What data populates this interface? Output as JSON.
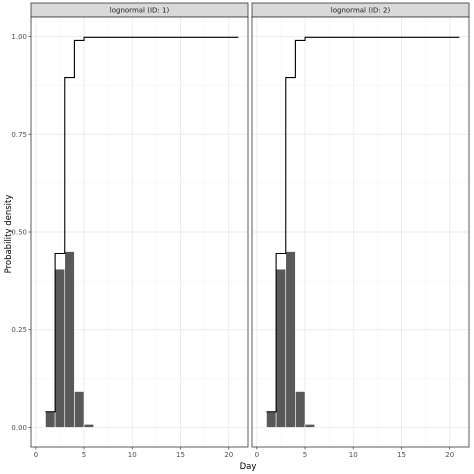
{
  "chart_data": {
    "type": "bar",
    "xlabel": "Day",
    "ylabel": "Probability density",
    "xlim": [
      -0.5,
      22
    ],
    "ylim": [
      -0.05,
      1.05
    ],
    "x_ticks": [
      0,
      5,
      10,
      15,
      20
    ],
    "y_ticks": [
      0,
      0.25,
      0.5,
      0.75,
      1
    ],
    "y_tick_labels": [
      "0.00",
      "0.25",
      "0.50",
      "0.75",
      "1.00"
    ],
    "grid": true,
    "colors": {
      "bar": "#595959",
      "line": "#000000",
      "strip_bg": "#d9d9d9",
      "grid_major": "#ebebeb",
      "grid_minor": "#f5f5f5"
    },
    "panels": [
      {
        "label": "lognormal (ID: 1)",
        "bars": [
          {
            "x": 1,
            "y": 0.04
          },
          {
            "x": 2,
            "y": 0.405
          },
          {
            "x": 3,
            "y": 0.45
          },
          {
            "x": 4,
            "y": 0.092
          },
          {
            "x": 5,
            "y": 0.008
          }
        ],
        "cdf": [
          {
            "x": 1,
            "y": 0.04
          },
          {
            "x": 2,
            "y": 0.445
          },
          {
            "x": 3,
            "y": 0.895
          },
          {
            "x": 4,
            "y": 0.99
          },
          {
            "x": 5,
            "y": 0.998
          },
          {
            "x": 21,
            "y": 0.998
          }
        ]
      },
      {
        "label": "lognormal (ID: 2)",
        "bars": [
          {
            "x": 1,
            "y": 0.04
          },
          {
            "x": 2,
            "y": 0.405
          },
          {
            "x": 3,
            "y": 0.45
          },
          {
            "x": 4,
            "y": 0.092
          },
          {
            "x": 5,
            "y": 0.008
          }
        ],
        "cdf": [
          {
            "x": 1,
            "y": 0.04
          },
          {
            "x": 2,
            "y": 0.445
          },
          {
            "x": 3,
            "y": 0.895
          },
          {
            "x": 4,
            "y": 0.99
          },
          {
            "x": 5,
            "y": 0.998
          },
          {
            "x": 21,
            "y": 0.998
          }
        ]
      }
    ]
  }
}
